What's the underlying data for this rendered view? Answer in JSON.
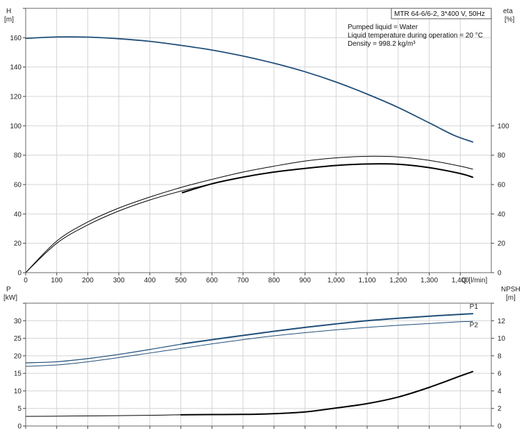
{
  "chart_data": [
    {
      "type": "line",
      "name": "head-efficiency",
      "title": "MTR 64-6/6-2, 3*400 V, 50Hz",
      "annotations": [
        "Pumped liquid = Water",
        "Liquid temperature during operation = 20 °C",
        "Density = 998.2 kg/m³"
      ],
      "xlabel": "Q [l/min]",
      "xlim": [
        0,
        1500
      ],
      "xticks": [
        0,
        100,
        200,
        300,
        400,
        500,
        600,
        700,
        800,
        900,
        1000,
        1100,
        1200,
        1300,
        1400
      ],
      "xtick_labels": [
        "0",
        "100",
        "200",
        "300",
        "400",
        "500",
        "600",
        "700",
        "800",
        "900",
        "1,000",
        "1,100",
        "1,200",
        "1,300",
        "1,400"
      ],
      "y_left": {
        "label_top": "H",
        "label_unit": "[m]",
        "lim": [
          0,
          180
        ],
        "ticks": [
          0,
          20,
          40,
          60,
          80,
          100,
          120,
          140,
          160
        ]
      },
      "y_right": {
        "label_top": "eta",
        "label_unit": "[%]",
        "lim": [
          0,
          180
        ],
        "ticks": [
          0,
          20,
          40,
          60,
          80,
          100
        ]
      },
      "grid": true,
      "series": [
        {
          "axis": "left",
          "color": "#1f4e79",
          "width": 1.8,
          "points": [
            [
              0,
              159.5
            ],
            [
              100,
              160.5
            ],
            [
              200,
              160.4
            ],
            [
              300,
              159.3
            ],
            [
              400,
              157.5
            ],
            [
              500,
              154.8
            ],
            [
              600,
              151.6
            ],
            [
              700,
              147.5
            ],
            [
              800,
              142.6
            ],
            [
              900,
              136.8
            ],
            [
              1000,
              129.8
            ],
            [
              1100,
              121.6
            ],
            [
              1200,
              112.5
            ],
            [
              1300,
              102
            ],
            [
              1380,
              93.5
            ],
            [
              1440,
              89
            ]
          ]
        },
        {
          "axis": "right",
          "color": "#000000",
          "width": 1,
          "points": [
            [
              0,
              0
            ],
            [
              100,
              21.5
            ],
            [
              200,
              34.5
            ],
            [
              300,
              44
            ],
            [
              400,
              51.5
            ],
            [
              500,
              58
            ],
            [
              600,
              63.5
            ],
            [
              700,
              68.5
            ],
            [
              800,
              72.5
            ],
            [
              900,
              76
            ],
            [
              1000,
              78.2
            ],
            [
              1100,
              79.2
            ],
            [
              1200,
              78.8
            ],
            [
              1300,
              76.5
            ],
            [
              1400,
              72.5
            ],
            [
              1440,
              70.5
            ]
          ]
        },
        {
          "axis": "right",
          "color": "#000000",
          "width": 1,
          "points": [
            [
              0,
              0
            ],
            [
              100,
              20
            ],
            [
              200,
              32.5
            ],
            [
              300,
              42
            ],
            [
              400,
              49.5
            ],
            [
              500,
              55.5
            ],
            [
              600,
              60.5
            ],
            [
              700,
              65
            ],
            [
              800,
              68.5
            ],
            [
              900,
              71
            ],
            [
              1000,
              73
            ],
            [
              1100,
              74
            ],
            [
              1200,
              73.8
            ],
            [
              1300,
              71.5
            ],
            [
              1400,
              67.5
            ],
            [
              1440,
              65
            ]
          ]
        },
        {
          "axis": "right",
          "color": "#000000",
          "width": 2,
          "points": [
            [
              505,
              54.5
            ],
            [
              600,
              60.5
            ],
            [
              700,
              65
            ],
            [
              800,
              68.5
            ],
            [
              900,
              71
            ],
            [
              1000,
              73
            ],
            [
              1100,
              74
            ],
            [
              1200,
              73.8
            ],
            [
              1300,
              71.5
            ],
            [
              1400,
              67.5
            ],
            [
              1440,
              65
            ]
          ]
        }
      ]
    },
    {
      "type": "line",
      "name": "power-npsh",
      "xlim": [
        0,
        1500
      ],
      "xticks": [
        0,
        100,
        200,
        300,
        400,
        500,
        600,
        700,
        800,
        900,
        1000,
        1100,
        1200,
        1300,
        1400
      ],
      "y_left": {
        "label_top": "P",
        "label_unit": "[kW]",
        "lim": [
          0,
          35
        ],
        "ticks": [
          0,
          5,
          10,
          15,
          20,
          25,
          30
        ]
      },
      "y_right": {
        "label_top": "NPSH",
        "label_unit": "[m]",
        "lim": [
          0,
          14
        ],
        "ticks": [
          0,
          2,
          4,
          6,
          8,
          10,
          12
        ]
      },
      "grid": true,
      "series": [
        {
          "name": "P1",
          "axis": "left",
          "color": "#1f4e79",
          "width": 1.2,
          "points": [
            [
              0,
              18
            ],
            [
              100,
              18.3
            ],
            [
              200,
              19.2
            ],
            [
              300,
              20.4
            ],
            [
              400,
              21.8
            ],
            [
              500,
              23.3
            ],
            [
              600,
              24.6
            ],
            [
              700,
              25.8
            ],
            [
              800,
              27
            ],
            [
              900,
              28.1
            ],
            [
              1000,
              29.1
            ],
            [
              1100,
              30
            ],
            [
              1200,
              30.7
            ],
            [
              1300,
              31.3
            ],
            [
              1400,
              31.8
            ],
            [
              1440,
              32
            ]
          ]
        },
        {
          "axis": "left",
          "color": "#1f4e79",
          "width": 2,
          "points": [
            [
              505,
              23.4
            ],
            [
              600,
              24.6
            ],
            [
              700,
              25.8
            ],
            [
              800,
              27
            ],
            [
              900,
              28.1
            ],
            [
              1000,
              29.1
            ],
            [
              1100,
              30
            ],
            [
              1200,
              30.7
            ],
            [
              1300,
              31.3
            ],
            [
              1400,
              31.8
            ],
            [
              1440,
              32
            ]
          ]
        },
        {
          "name": "P2",
          "axis": "left",
          "color": "#1f4e79",
          "width": 1,
          "points": [
            [
              0,
              17
            ],
            [
              100,
              17.4
            ],
            [
              200,
              18.3
            ],
            [
              300,
              19.5
            ],
            [
              400,
              20.8
            ],
            [
              500,
              22.1
            ],
            [
              600,
              23.4
            ],
            [
              700,
              24.6
            ],
            [
              800,
              25.7
            ],
            [
              900,
              26.6
            ],
            [
              1000,
              27.4
            ],
            [
              1100,
              28.1
            ],
            [
              1200,
              28.7
            ],
            [
              1300,
              29.2
            ],
            [
              1400,
              29.7
            ],
            [
              1440,
              29.8
            ]
          ]
        },
        {
          "axis": "right",
          "color": "#000000",
          "width": 1,
          "points": [
            [
              0,
              1.1
            ],
            [
              100,
              1.12
            ],
            [
              200,
              1.15
            ],
            [
              300,
              1.18
            ],
            [
              400,
              1.22
            ],
            [
              500,
              1.28
            ]
          ]
        },
        {
          "axis": "right",
          "color": "#000000",
          "width": 2,
          "points": [
            [
              500,
              1.28
            ],
            [
              600,
              1.3
            ],
            [
              700,
              1.32
            ],
            [
              800,
              1.4
            ],
            [
              900,
              1.6
            ],
            [
              1000,
              2.05
            ],
            [
              1100,
              2.55
            ],
            [
              1200,
              3.3
            ],
            [
              1300,
              4.4
            ],
            [
              1400,
              5.7
            ],
            [
              1440,
              6.2
            ]
          ]
        }
      ],
      "curve_labels": [
        {
          "text": "P1",
          "x": 1430,
          "y": 33.4
        },
        {
          "text": "P2",
          "x": 1430,
          "y": 28.2
        }
      ]
    }
  ]
}
